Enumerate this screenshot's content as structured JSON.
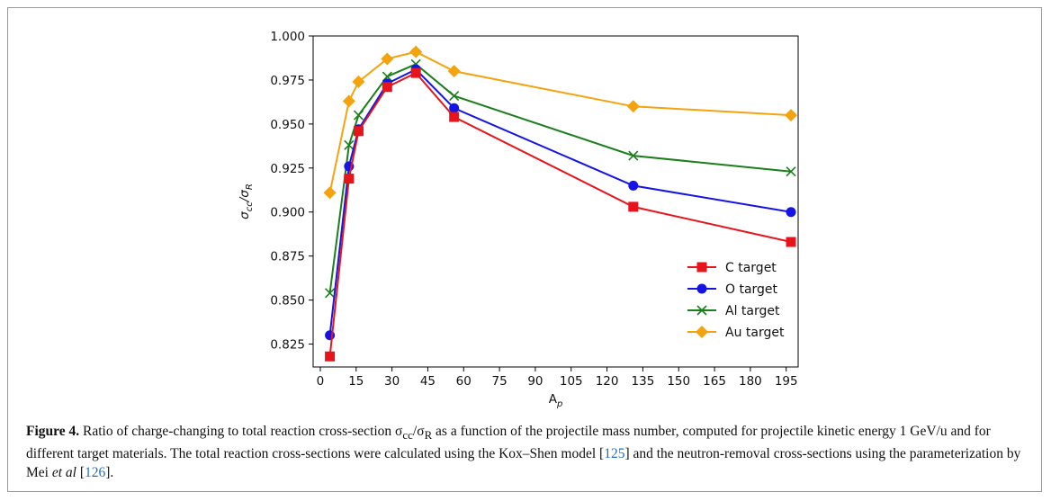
{
  "chart_data": {
    "type": "line",
    "xlabel": "A_p",
    "ylabel": "σ_cc/σ_R",
    "xlim": [
      -3,
      200
    ],
    "ylim": [
      0.812,
      1.0
    ],
    "xticks": [
      0,
      15,
      30,
      45,
      60,
      75,
      90,
      105,
      120,
      135,
      150,
      165,
      180,
      195
    ],
    "yticks": [
      0.825,
      0.85,
      0.875,
      0.9,
      0.925,
      0.95,
      0.975,
      1.0
    ],
    "ytick_labels": [
      "0.825",
      "0.850",
      "0.875",
      "0.900",
      "0.925",
      "0.950",
      "0.975",
      "1.000"
    ],
    "legend_position": "lower-right",
    "x": [
      4,
      12,
      16,
      28,
      40,
      56,
      131,
      197
    ],
    "series": [
      {
        "name": "C target",
        "color": "#e8141b",
        "marker": "square",
        "values": [
          0.818,
          0.919,
          0.946,
          0.971,
          0.979,
          0.954,
          0.903,
          0.883
        ]
      },
      {
        "name": "O target",
        "color": "#1414e6",
        "marker": "circle",
        "values": [
          0.83,
          0.926,
          0.947,
          0.973,
          0.981,
          0.959,
          0.915,
          0.9
        ]
      },
      {
        "name": "Al target",
        "color": "#1a7f1a",
        "marker": "x",
        "values": [
          0.854,
          0.938,
          0.955,
          0.977,
          0.984,
          0.966,
          0.932,
          0.923
        ]
      },
      {
        "name": "Au target",
        "color": "#f4a30e",
        "marker": "diamond",
        "values": [
          0.911,
          0.963,
          0.974,
          0.987,
          0.991,
          0.98,
          0.96,
          0.955
        ]
      }
    ]
  },
  "caption": {
    "label": "Figure 4.",
    "text_a": "Ratio of charge-changing to total reaction cross-section σ",
    "sub_cc": "cc",
    "text_b": "/σ",
    "sub_r": "R",
    "text_c": " as a function of the projectile mass number, computed for projectile kinetic energy 1 GeV/u and for different target materials. The total reaction cross-sections were calculated using the Kox–Shen model [",
    "ref1": "125",
    "text_d": "] and the neutron-removal cross-sections using the parameterization by Mei ",
    "et_al": "et al",
    "text_e": " [",
    "ref2": "126",
    "text_f": "]."
  }
}
